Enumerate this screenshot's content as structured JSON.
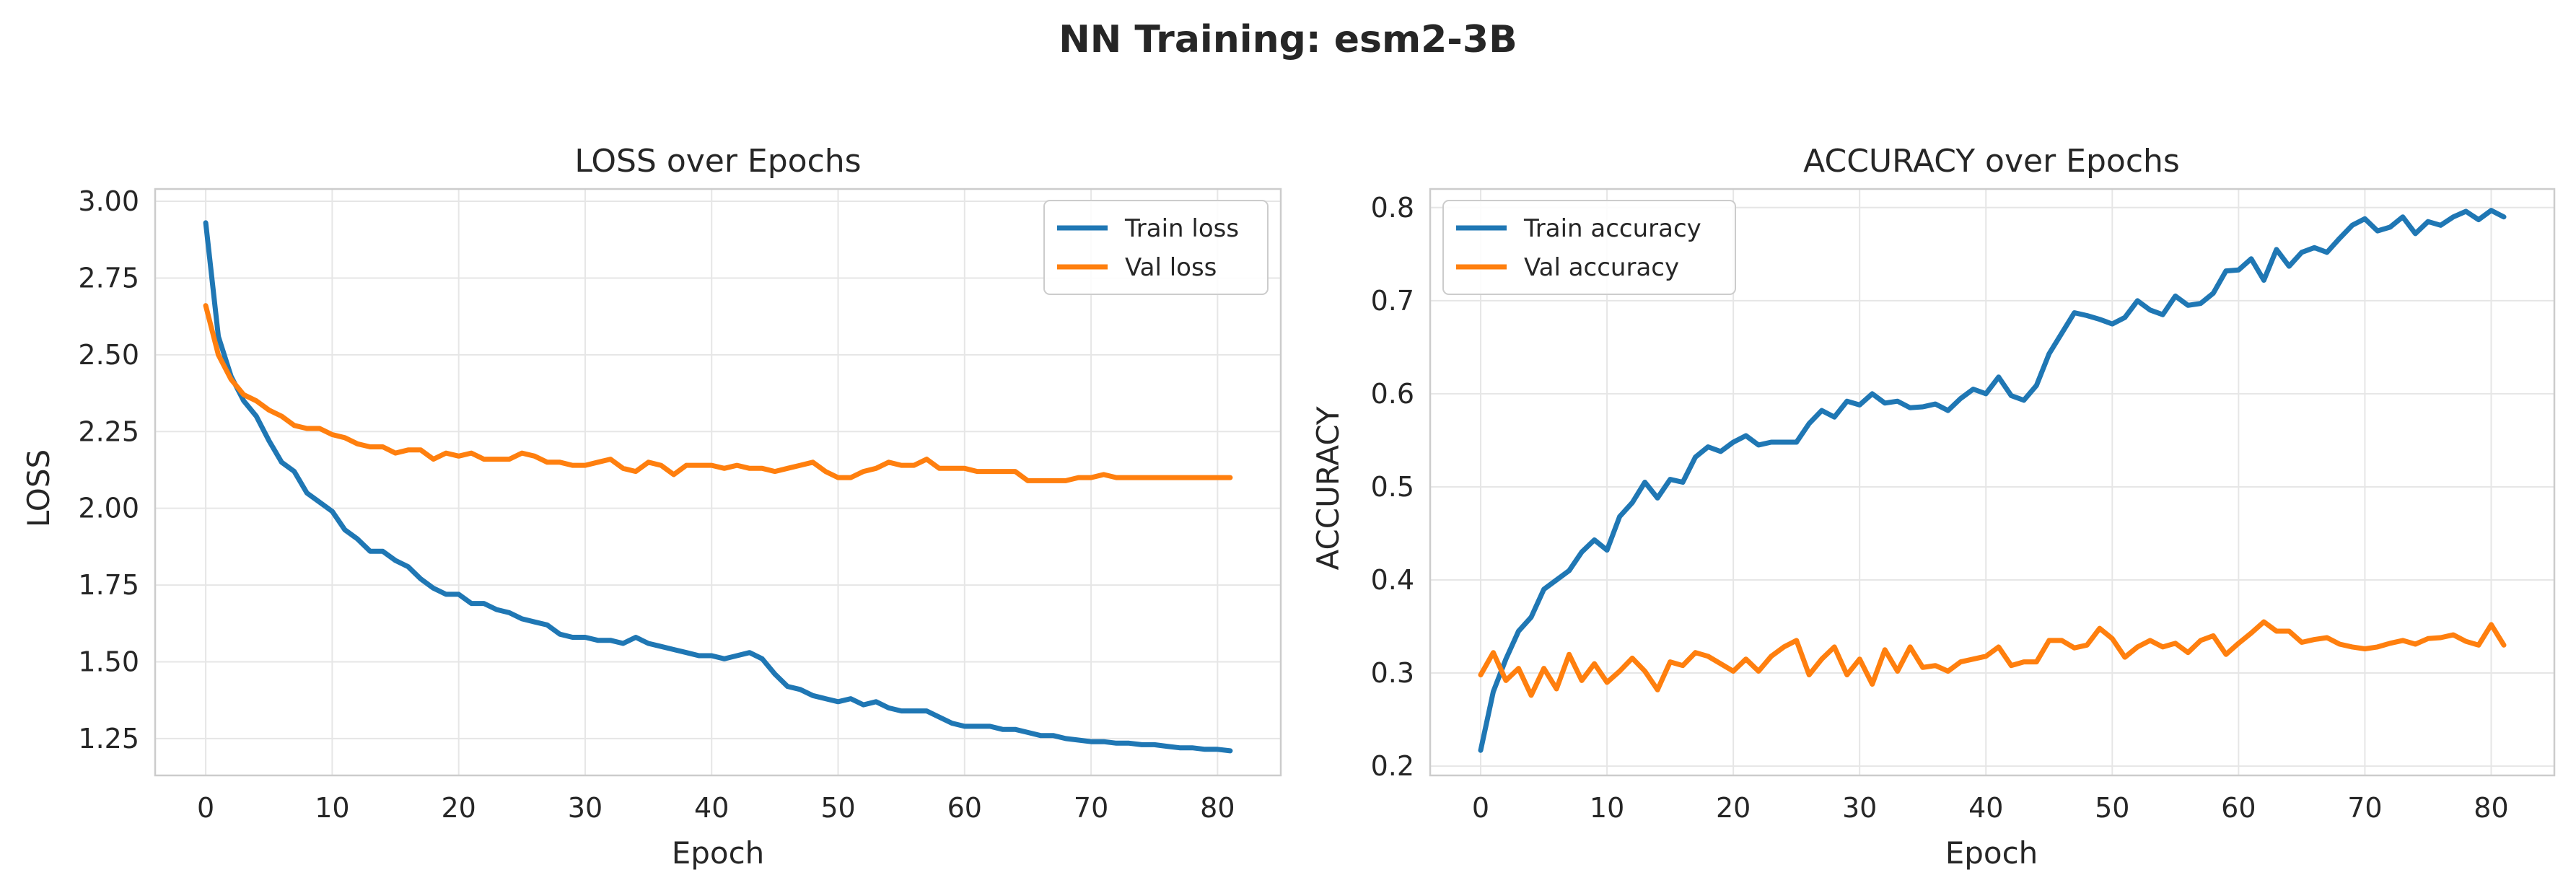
{
  "suptitle": "NN Training: esm2-3B",
  "colors": {
    "train": "#1f77b4",
    "val": "#ff7f0e"
  },
  "chart_data": [
    {
      "type": "line",
      "title": "LOSS over Epochs",
      "xlabel": "Epoch",
      "ylabel": "LOSS",
      "xlim": [
        -4,
        85
      ],
      "ylim": [
        1.13,
        3.04
      ],
      "xticks": [
        0,
        10,
        20,
        30,
        40,
        50,
        60,
        70,
        80
      ],
      "yticks": [
        1.25,
        1.5,
        1.75,
        2.0,
        2.25,
        2.5,
        2.75,
        3.0
      ],
      "yticklabels": [
        "1.25",
        "1.50",
        "1.75",
        "2.00",
        "2.25",
        "2.50",
        "2.75",
        "3.00"
      ],
      "legend": "top-right",
      "grid": true,
      "series": [
        {
          "name": "Train loss",
          "color": "#1f77b4",
          "values": [
            2.93,
            2.56,
            2.43,
            2.35,
            2.3,
            2.22,
            2.15,
            2.12,
            2.05,
            2.02,
            1.99,
            1.93,
            1.9,
            1.86,
            1.86,
            1.83,
            1.81,
            1.77,
            1.74,
            1.72,
            1.72,
            1.69,
            1.69,
            1.67,
            1.66,
            1.64,
            1.63,
            1.62,
            1.59,
            1.58,
            1.58,
            1.57,
            1.57,
            1.56,
            1.58,
            1.56,
            1.55,
            1.54,
            1.53,
            1.52,
            1.52,
            1.51,
            1.52,
            1.53,
            1.51,
            1.46,
            1.42,
            1.41,
            1.39,
            1.38,
            1.37,
            1.38,
            1.36,
            1.37,
            1.35,
            1.34,
            1.34,
            1.34,
            1.32,
            1.3,
            1.29,
            1.29,
            1.29,
            1.28,
            1.28,
            1.27,
            1.26,
            1.26,
            1.25,
            1.245,
            1.24,
            1.24,
            1.235,
            1.235,
            1.23,
            1.23,
            1.225,
            1.22,
            1.22,
            1.215,
            1.215,
            1.21
          ]
        },
        {
          "name": "Val loss",
          "color": "#ff7f0e",
          "values": [
            2.66,
            2.5,
            2.42,
            2.37,
            2.35,
            2.32,
            2.3,
            2.27,
            2.26,
            2.26,
            2.24,
            2.23,
            2.21,
            2.2,
            2.2,
            2.18,
            2.19,
            2.19,
            2.16,
            2.18,
            2.17,
            2.18,
            2.16,
            2.16,
            2.16,
            2.18,
            2.17,
            2.15,
            2.15,
            2.14,
            2.14,
            2.15,
            2.16,
            2.13,
            2.12,
            2.15,
            2.14,
            2.11,
            2.14,
            2.14,
            2.14,
            2.13,
            2.14,
            2.13,
            2.13,
            2.12,
            2.13,
            2.14,
            2.15,
            2.12,
            2.1,
            2.1,
            2.12,
            2.13,
            2.15,
            2.14,
            2.14,
            2.16,
            2.13,
            2.13,
            2.13,
            2.12,
            2.12,
            2.12,
            2.12,
            2.09,
            2.09,
            2.09,
            2.09,
            2.1,
            2.1,
            2.11,
            2.1,
            2.1,
            2.1,
            2.1,
            2.1,
            2.1,
            2.1,
            2.1,
            2.1,
            2.1
          ]
        }
      ]
    },
    {
      "type": "line",
      "title": "ACCURACY over Epochs",
      "xlabel": "Epoch",
      "ylabel": "ACCURACY",
      "xlim": [
        -4,
        85
      ],
      "ylim": [
        0.19,
        0.82
      ],
      "xticks": [
        0,
        10,
        20,
        30,
        40,
        50,
        60,
        70,
        80
      ],
      "yticks": [
        0.2,
        0.3,
        0.4,
        0.5,
        0.6,
        0.7,
        0.8
      ],
      "yticklabels": [
        "0.2",
        "0.3",
        "0.4",
        "0.5",
        "0.6",
        "0.7",
        "0.8"
      ],
      "legend": "top-left",
      "grid": true,
      "series": [
        {
          "name": "Train accuracy",
          "color": "#1f77b4",
          "values": [
            0.217,
            0.28,
            0.315,
            0.345,
            0.36,
            0.39,
            0.4,
            0.41,
            0.43,
            0.443,
            0.432,
            0.468,
            0.483,
            0.505,
            0.488,
            0.508,
            0.505,
            0.532,
            0.543,
            0.538,
            0.548,
            0.555,
            0.545,
            0.548,
            0.548,
            0.548,
            0.568,
            0.582,
            0.575,
            0.592,
            0.588,
            0.6,
            0.59,
            0.592,
            0.585,
            0.586,
            0.589,
            0.582,
            0.595,
            0.605,
            0.6,
            0.618,
            0.598,
            0.593,
            0.609,
            0.643,
            0.665,
            0.687,
            0.684,
            0.68,
            0.675,
            0.682,
            0.7,
            0.69,
            0.685,
            0.705,
            0.695,
            0.697,
            0.708,
            0.732,
            0.733,
            0.745,
            0.722,
            0.755,
            0.737,
            0.752,
            0.757,
            0.752,
            0.767,
            0.781,
            0.788,
            0.775,
            0.779,
            0.79,
            0.772,
            0.785,
            0.781,
            0.79,
            0.796,
            0.787,
            0.797,
            0.79
          ]
        },
        {
          "name": "Val accuracy",
          "color": "#ff7f0e",
          "values": [
            0.298,
            0.322,
            0.292,
            0.305,
            0.276,
            0.305,
            0.283,
            0.32,
            0.292,
            0.31,
            0.29,
            0.302,
            0.316,
            0.302,
            0.282,
            0.312,
            0.308,
            0.322,
            0.318,
            0.31,
            0.302,
            0.315,
            0.302,
            0.318,
            0.328,
            0.335,
            0.298,
            0.315,
            0.328,
            0.298,
            0.315,
            0.288,
            0.325,
            0.302,
            0.328,
            0.306,
            0.308,
            0.302,
            0.312,
            0.315,
            0.318,
            0.328,
            0.308,
            0.312,
            0.312,
            0.335,
            0.335,
            0.327,
            0.33,
            0.348,
            0.337,
            0.317,
            0.328,
            0.335,
            0.328,
            0.332,
            0.322,
            0.335,
            0.34,
            0.32,
            0.332,
            0.343,
            0.355,
            0.345,
            0.345,
            0.333,
            0.336,
            0.338,
            0.331,
            0.328,
            0.326,
            0.328,
            0.332,
            0.335,
            0.331,
            0.337,
            0.338,
            0.341,
            0.334,
            0.33,
            0.352,
            0.33
          ]
        }
      ]
    }
  ]
}
